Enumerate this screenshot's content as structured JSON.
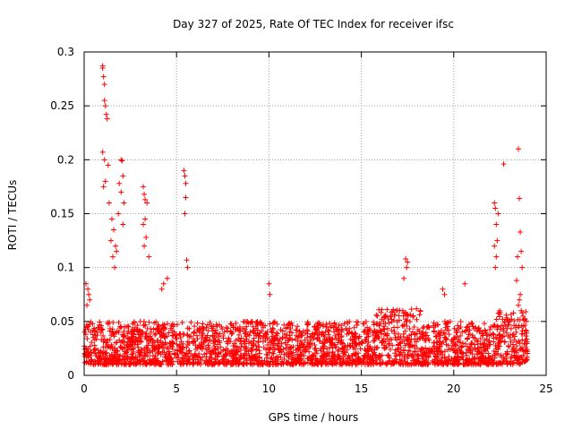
{
  "chart_data": {
    "type": "scatter",
    "title": "Day 327 of 2025, Rate Of TEC Index for receiver ifsc",
    "xlabel": "GPS time / hours",
    "ylabel": "ROTI / TECUs",
    "xlim": [
      0,
      25
    ],
    "ylim": [
      0,
      0.3
    ],
    "grid": true,
    "marker": "+",
    "color": "#ff0000",
    "x_ticks": [
      {
        "value": 0,
        "label": "0"
      },
      {
        "value": 5,
        "label": "5"
      },
      {
        "value": 10,
        "label": "10"
      },
      {
        "value": 15,
        "label": "15"
      },
      {
        "value": 20,
        "label": "20"
      },
      {
        "value": 25,
        "label": "25"
      }
    ],
    "y_ticks": [
      {
        "value": 0,
        "label": "0"
      },
      {
        "value": 0.05,
        "label": "0.05"
      },
      {
        "value": 0.1,
        "label": "0.1"
      },
      {
        "value": 0.15,
        "label": "0.15"
      },
      {
        "value": 0.2,
        "label": "0.2"
      },
      {
        "value": 0.25,
        "label": "0.25"
      },
      {
        "value": 0.3,
        "label": "0.3"
      }
    ],
    "series": [
      {
        "name": "ROTI",
        "description": "dense band of points mostly between 0.01 and 0.05 TECU/s over 0-24 h, plus the distinct outliers listed",
        "baseline_range": [
          0.01,
          0.05
        ],
        "x": [
          1.0,
          1.0,
          1.05,
          1.1,
          1.1,
          1.15,
          1.2,
          1.25,
          1.0,
          1.1,
          1.3,
          1.15,
          1.05,
          1.35,
          1.5,
          1.6,
          1.7,
          1.75,
          1.45,
          1.55,
          1.65,
          2.0,
          2.05,
          2.1,
          1.9,
          2.0,
          2.15,
          1.85,
          2.1,
          3.2,
          3.25,
          3.3,
          3.4,
          3.3,
          3.2,
          3.35,
          3.25,
          3.5,
          4.3,
          4.5,
          4.2,
          5.4,
          5.45,
          5.5,
          5.5,
          5.45,
          5.55,
          5.6,
          0.1,
          0.2,
          0.25,
          0.3,
          0.15,
          10.0,
          10.05,
          17.4,
          17.5,
          17.45,
          17.3,
          19.4,
          19.5,
          20.6,
          22.2,
          22.25,
          22.3,
          22.35,
          22.2,
          22.3,
          22.25,
          22.4,
          22.7,
          23.5,
          23.55,
          23.6,
          23.65,
          23.45,
          23.7,
          23.4,
          23.6,
          23.55,
          23.5,
          23.65,
          23.7,
          23.75
        ],
        "y": [
          0.287,
          0.285,
          0.277,
          0.27,
          0.255,
          0.25,
          0.242,
          0.238,
          0.207,
          0.2,
          0.195,
          0.18,
          0.175,
          0.16,
          0.145,
          0.135,
          0.12,
          0.115,
          0.125,
          0.11,
          0.1,
          0.2,
          0.199,
          0.185,
          0.178,
          0.17,
          0.16,
          0.15,
          0.14,
          0.175,
          0.168,
          0.163,
          0.16,
          0.145,
          0.14,
          0.128,
          0.12,
          0.11,
          0.085,
          0.09,
          0.08,
          0.19,
          0.185,
          0.178,
          0.165,
          0.15,
          0.107,
          0.1,
          0.085,
          0.08,
          0.075,
          0.07,
          0.065,
          0.085,
          0.075,
          0.108,
          0.105,
          0.1,
          0.09,
          0.08,
          0.075,
          0.085,
          0.16,
          0.155,
          0.14,
          0.125,
          0.12,
          0.11,
          0.1,
          0.15,
          0.196,
          0.21,
          0.164,
          0.133,
          0.115,
          0.11,
          0.1,
          0.088,
          0.075,
          0.07,
          0.065,
          0.06,
          0.058,
          0.055
        ]
      }
    ]
  }
}
